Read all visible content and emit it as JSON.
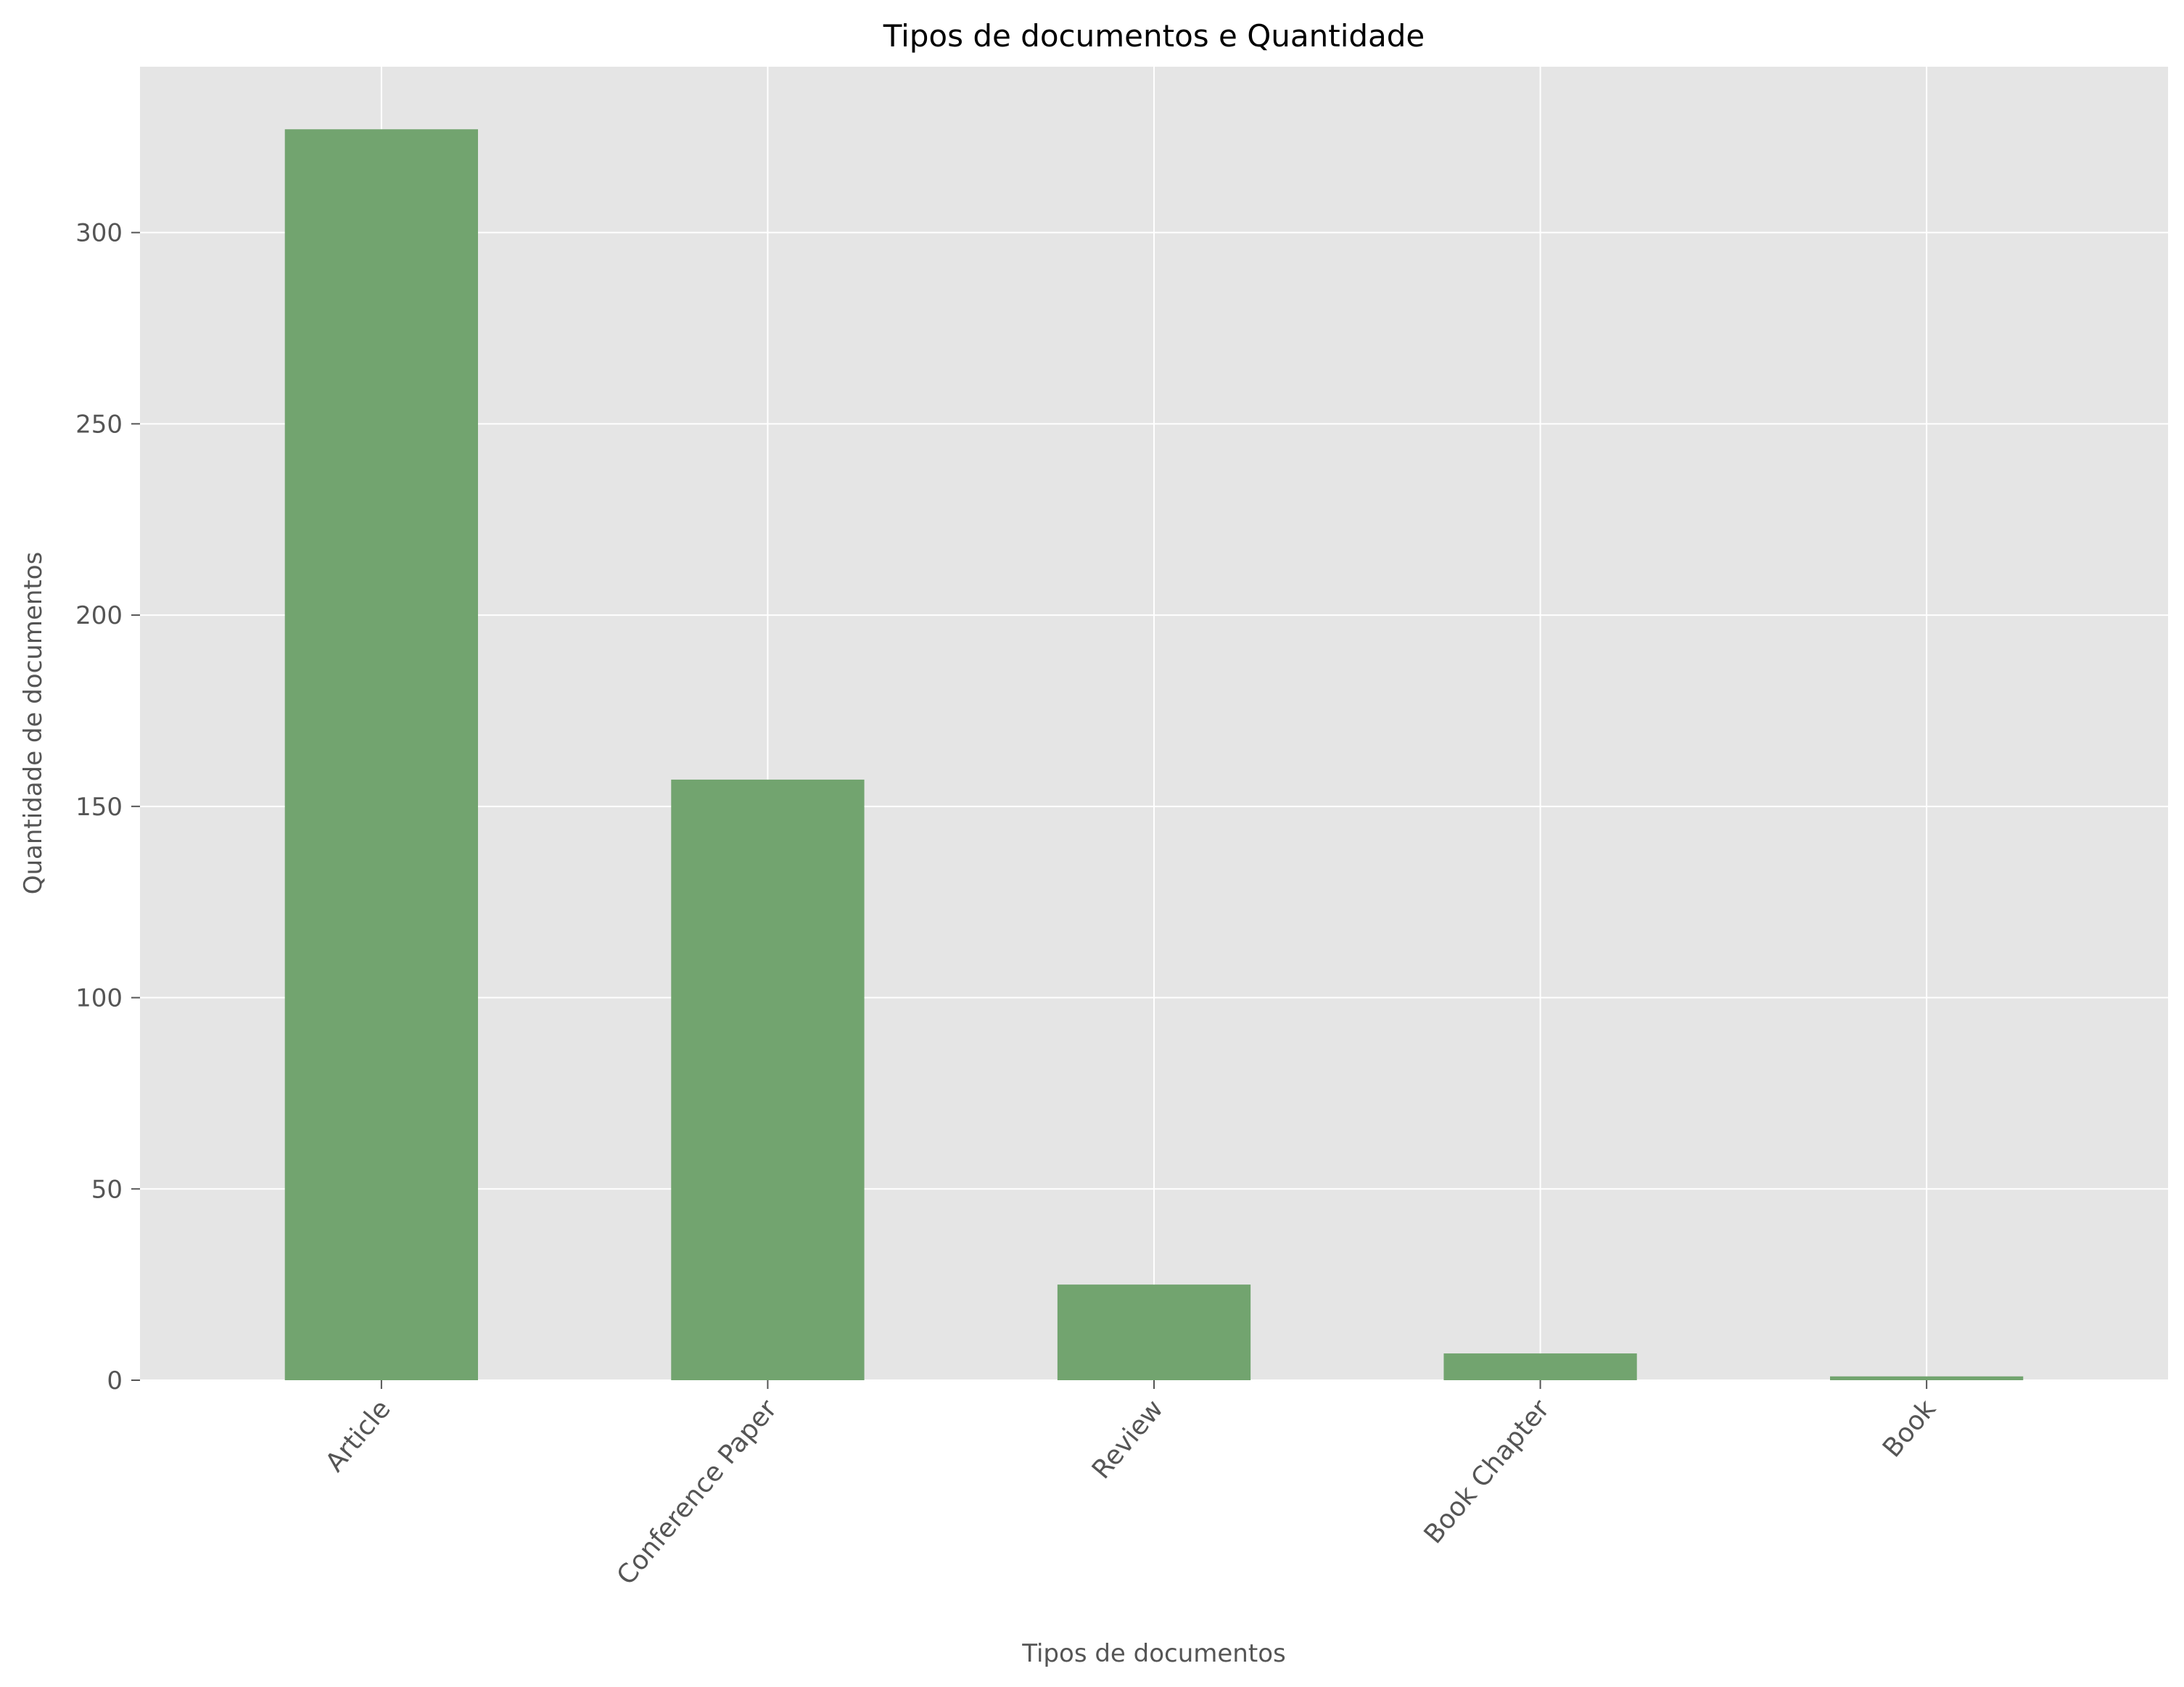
{
  "chart_data": {
    "type": "bar",
    "title": "Tipos de documentos e Quantidade",
    "xlabel": "Tipos de documentos",
    "ylabel": "Quantidade de documentos",
    "categories": [
      "Article",
      "Conference Paper",
      "Review",
      "Book Chapter",
      "Book"
    ],
    "values": [
      327,
      157,
      25,
      7,
      1
    ],
    "ylim": [
      0,
      343.35
    ],
    "yticks": [
      0,
      50,
      100,
      150,
      200,
      250,
      300
    ],
    "grid": true,
    "legend": "none",
    "colors": {
      "bar": "#72a46f",
      "plot_background": "#e5e5e5",
      "grid": "#ffffff",
      "tick_text": "#555555",
      "title_text": "#000000"
    }
  }
}
